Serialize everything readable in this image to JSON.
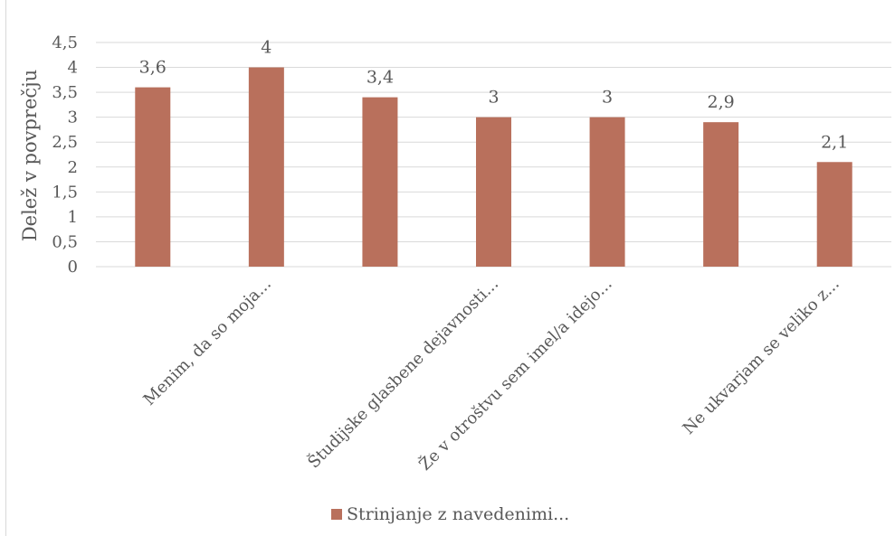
{
  "chart_data": {
    "type": "bar",
    "categories": [
      "",
      "Menim, da so moja...",
      "",
      "Študijske glasbene dejavnosti...",
      "Že v otroštvu sem imel/a idejo...",
      "",
      "Ne ukvarjam se veliko z..."
    ],
    "category_label_visible": [
      false,
      true,
      false,
      true,
      true,
      false,
      true
    ],
    "series": [
      {
        "name": "Strinjanje z navedenimi...",
        "values": [
          3.6,
          4,
          3.4,
          3,
          3,
          2.9,
          2.1
        ]
      }
    ],
    "data_labels": [
      "3,6",
      "4",
      "3,4",
      "3",
      "3",
      "2,9",
      "2,1"
    ],
    "ylabel": "Delež v povprečju",
    "xlabel": "",
    "ylim": [
      0,
      4.5
    ],
    "yticks": [
      0,
      0.5,
      1,
      1.5,
      2,
      2.5,
      3,
      3.5,
      4,
      4.5
    ],
    "ytick_labels": [
      "0",
      "0,5",
      "1",
      "1,5",
      "2",
      "2,5",
      "3",
      "3,5",
      "4",
      "4,5"
    ],
    "grid": true,
    "legend_position": "bottom",
    "colors": {
      "bar": "#B9705C",
      "grid": "#d9d9d9",
      "text": "#595959"
    }
  }
}
